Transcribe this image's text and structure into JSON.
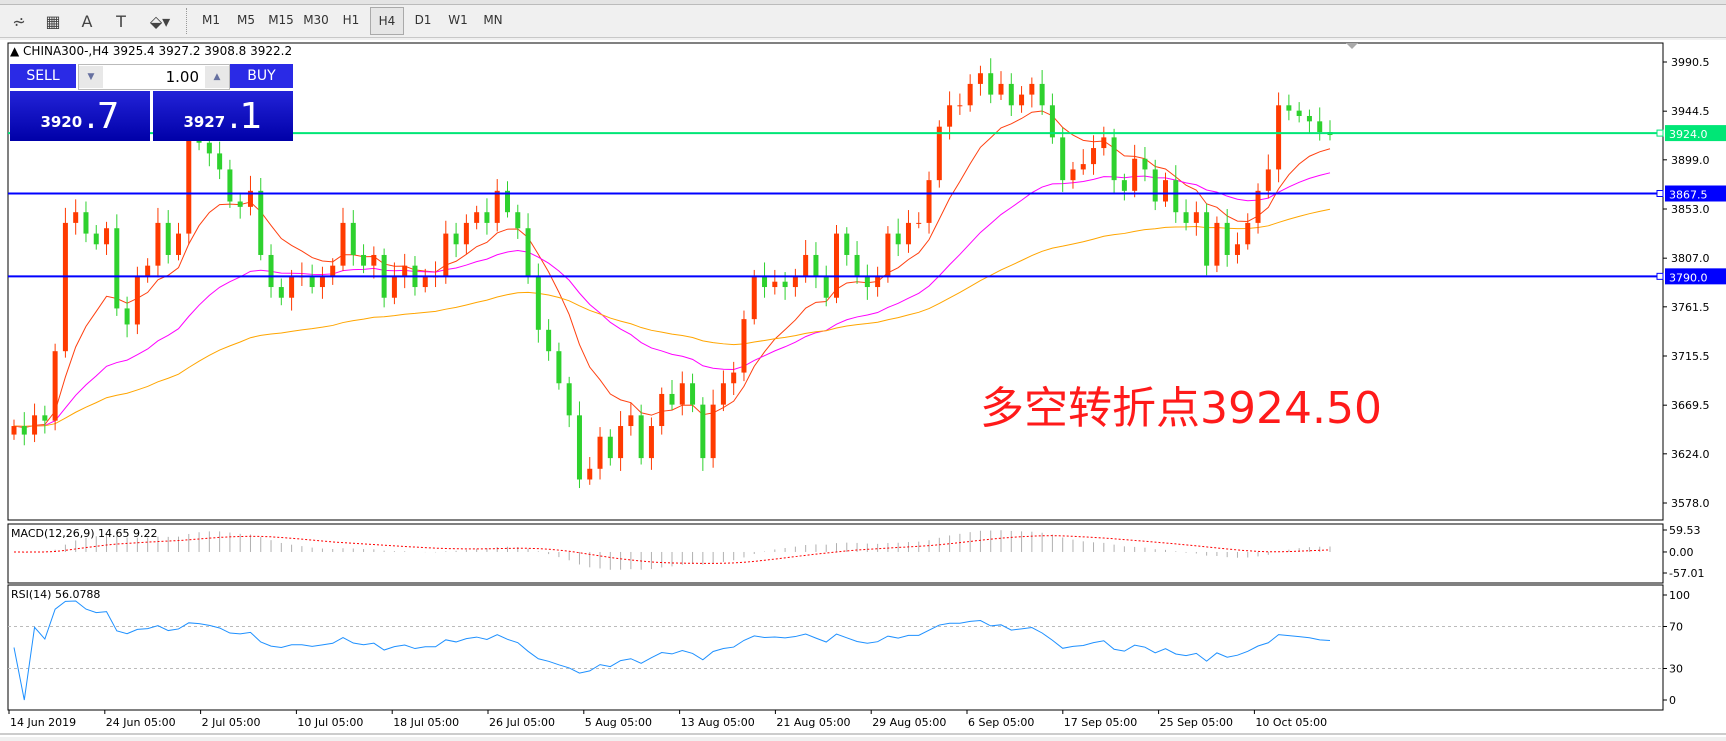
{
  "toolbar": {
    "icons": [
      "elliott-wave-icon",
      "fibonacci-icon",
      "text-icon",
      "text-label-icon",
      "arrows-icon"
    ],
    "icon_glyphs": [
      "⩫",
      "▦",
      "A",
      "T",
      "⬙▾"
    ],
    "timeframes": [
      "M1",
      "M5",
      "M15",
      "M30",
      "H1",
      "H4",
      "D1",
      "W1",
      "MN"
    ],
    "active_timeframe": "H4"
  },
  "chart": {
    "header": "▲ CHINA300-,H4  3925.4 3927.2 3908.8 3922.2",
    "annotation": "多空转折点3924.50",
    "annotation_color": "#ff1a1a"
  },
  "trade_panel": {
    "sell_label": "SELL",
    "buy_label": "BUY",
    "lot": "1.00",
    "sell_price_main": "3920",
    "sell_price_big": ".7",
    "buy_price_main": "3927",
    "buy_price_big": ".1"
  },
  "chart_data": [
    {
      "type": "candlestick",
      "symbol": "CHINA300-",
      "timeframe": "H4",
      "ylim": [
        3550,
        4005
      ],
      "y_ticks": [
        "3990.5",
        "3944.5",
        "3899.0",
        "3853.0",
        "3807.0",
        "3761.5",
        "3715.5",
        "3669.5",
        "3624.0",
        "3578.0"
      ],
      "x_ticks": [
        "14 Jun 2019",
        "24 Jun 05:00",
        "2 Jul 05:00",
        "10 Jul 05:00",
        "18 Jul 05:00",
        "26 Jul 05:00",
        "5 Aug 05:00",
        "13 Aug 05:00",
        "21 Aug 05:00",
        "29 Aug 05:00",
        "6 Sep 05:00",
        "17 Sep 05:00",
        "25 Sep 05:00",
        "10 Oct 05:00"
      ],
      "bull_color": "#ff3a00",
      "bear_color": "#2ed12e",
      "close": [
        3650,
        3642,
        3660,
        3655,
        3720,
        3840,
        3850,
        3830,
        3820,
        3835,
        3760,
        3745,
        3790,
        3800,
        3840,
        3810,
        3830,
        3920,
        3915,
        3905,
        3890,
        3860,
        3855,
        3870,
        3810,
        3780,
        3770,
        3790,
        3790,
        3780,
        3790,
        3800,
        3840,
        3810,
        3800,
        3810,
        3770,
        3790,
        3800,
        3780,
        3790,
        3790,
        3830,
        3820,
        3840,
        3850,
        3840,
        3870,
        3850,
        3835,
        3790,
        3740,
        3720,
        3690,
        3660,
        3600,
        3610,
        3640,
        3620,
        3650,
        3660,
        3620,
        3650,
        3680,
        3670,
        3690,
        3670,
        3620,
        3670,
        3690,
        3700,
        3750,
        3790,
        3780,
        3785,
        3780,
        3790,
        3810,
        3790,
        3770,
        3830,
        3810,
        3790,
        3780,
        3790,
        3830,
        3820,
        3840,
        3840,
        3880,
        3930,
        3950,
        3950,
        3970,
        3980,
        3960,
        3970,
        3950,
        3960,
        3970,
        3950,
        3920,
        3880,
        3890,
        3895,
        3910,
        3920,
        3880,
        3870,
        3900,
        3890,
        3860,
        3880,
        3850,
        3840,
        3850,
        3800,
        3840,
        3810,
        3820,
        3840,
        3870,
        3890,
        3950,
        3945,
        3940,
        3935,
        3925,
        3922.2
      ],
      "moving_average_colors": [
        "#ff4010",
        "#ff00ff",
        "#ffa500"
      ],
      "hlines": [
        {
          "value": "3924.0",
          "color": "#00e676"
        },
        {
          "value": "3867.5",
          "color": "#0000ff"
        },
        {
          "value": "3790.0",
          "color": "#0000ff"
        }
      ]
    },
    {
      "type": "histogram+line",
      "label": "MACD(12,26,9) 14.65 9.22",
      "y_ticks": [
        "59.53",
        "0.00",
        "-57.01"
      ],
      "ylim": [
        -57.01,
        59.53
      ],
      "hist_color": "#b0b0b0",
      "signal_color": "#ff0000"
    },
    {
      "type": "line",
      "label": "RSI(14) 56.0788",
      "y_ticks": [
        "100",
        "70",
        "30",
        "0"
      ],
      "ylim": [
        0,
        100
      ],
      "levels": [
        70,
        30
      ],
      "color": "#1e90ff"
    }
  ]
}
